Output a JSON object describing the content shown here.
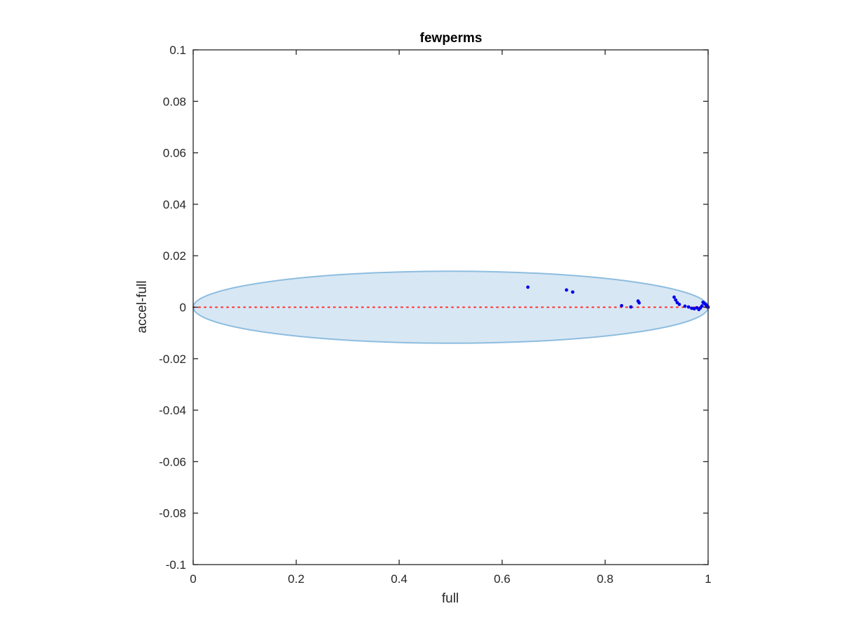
{
  "chart_data": {
    "type": "scatter",
    "title": "fewperms",
    "xlabel": "full",
    "ylabel": "accel-full",
    "xlim": [
      0,
      1
    ],
    "ylim": [
      -0.1,
      0.1
    ],
    "xticks": [
      0,
      0.2,
      0.4,
      0.6,
      0.8,
      1
    ],
    "xtick_labels": [
      "0",
      "0.2",
      "0.4",
      "0.6",
      "0.8",
      "1"
    ],
    "yticks": [
      -0.1,
      -0.08,
      -0.06,
      -0.04,
      -0.02,
      0,
      0.02,
      0.04,
      0.06,
      0.08,
      0.1
    ],
    "ytick_labels": [
      "-0.1",
      "-0.08",
      "-0.06",
      "-0.04",
      "-0.02",
      "0",
      "0.02",
      "0.04",
      "0.06",
      "0.08",
      "0.1"
    ],
    "grid": false,
    "ellipse": {
      "center": [
        0.5,
        0.0
      ],
      "x_radius": 0.5,
      "y_radius": 0.014,
      "fill_color": "#d8e7f4",
      "edge_color": "#8dbddf"
    },
    "reference_line": {
      "y": 0,
      "x_range": [
        0,
        1
      ],
      "style": "dotted",
      "color": "#ff2b2b"
    },
    "points_color": "#0000ee",
    "points": [
      {
        "x": 0.65,
        "y": 0.0078
      },
      {
        "x": 0.725,
        "y": 0.0067
      },
      {
        "x": 0.737,
        "y": 0.0059
      },
      {
        "x": 0.832,
        "y": 0.0006
      },
      {
        "x": 0.85,
        "y": 0.0001
      },
      {
        "x": 0.864,
        "y": 0.0024
      },
      {
        "x": 0.866,
        "y": 0.0017
      },
      {
        "x": 0.934,
        "y": 0.0039
      },
      {
        "x": 0.937,
        "y": 0.0028
      },
      {
        "x": 0.94,
        "y": 0.0018
      },
      {
        "x": 0.944,
        "y": 0.0011
      },
      {
        "x": 0.955,
        "y": 0.0004
      },
      {
        "x": 0.962,
        "y": 0.0001
      },
      {
        "x": 0.968,
        "y": -0.0004
      },
      {
        "x": 0.973,
        "y": -0.0006
      },
      {
        "x": 0.978,
        "y": -0.0002
      },
      {
        "x": 0.982,
        "y": -0.0009
      },
      {
        "x": 0.985,
        "y": -0.0003
      },
      {
        "x": 0.988,
        "y": 0.0005
      },
      {
        "x": 0.99,
        "y": 0.0019
      },
      {
        "x": 0.992,
        "y": 0.0016
      },
      {
        "x": 0.994,
        "y": 0.0013
      },
      {
        "x": 0.996,
        "y": 0.0009
      },
      {
        "x": 0.997,
        "y": 0.0005
      },
      {
        "x": 0.998,
        "y": 0.0002
      },
      {
        "x": 0.999,
        "y": 0.0004
      },
      {
        "x": 1.0,
        "y": 0.0
      }
    ]
  }
}
